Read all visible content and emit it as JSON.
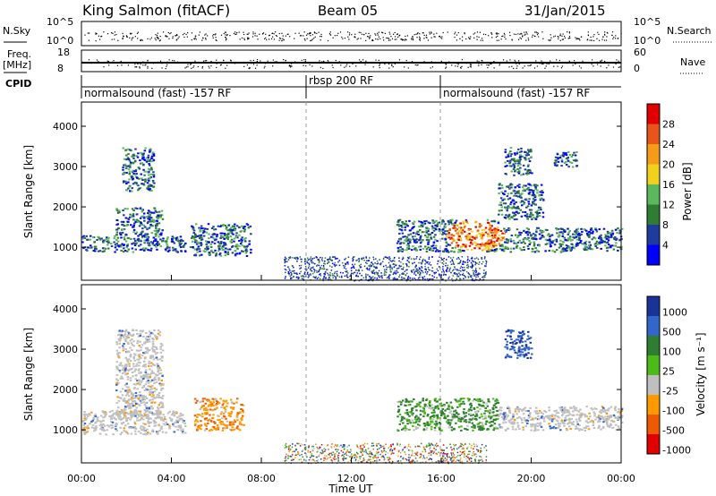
{
  "header": {
    "title": "King Salmon (fitACF)",
    "beam": "Beam 05",
    "date": "31/Jan/2015"
  },
  "aux_panels": {
    "nsky_label": "N.Sky",
    "nsky_ticks": [
      "10^5",
      "10^0"
    ],
    "nsearch_label": "N.Search",
    "nsearch_ticks": [
      "10^5",
      "10^0"
    ],
    "freq_label": "Freq.",
    "freq_unit": "[MHz]",
    "freq_ticks": [
      "18",
      "8"
    ],
    "nave_label": "Nave",
    "nave_ticks": [
      "60",
      "0"
    ],
    "cpid_label": "CPID",
    "cpid_segments": [
      {
        "label": "normalsound (fast) -157 RF",
        "start_h": 0,
        "end_h": 10
      },
      {
        "label": "rbsp 200 RF",
        "start_h": 10,
        "end_h": 16
      },
      {
        "label": "normalsound (fast) -157 RF",
        "start_h": 16,
        "end_h": 24
      }
    ]
  },
  "colors": {
    "power_scale": [
      "#0000ff",
      "#1e3ca0",
      "#2e7d32",
      "#5cb85c",
      "#f2d01e",
      "#f59b1a",
      "#e8551a",
      "#e00000"
    ],
    "velocity_scale": [
      "#e00000",
      "#ee5a00",
      "#ff9900",
      "#bfbfbf",
      "#4cbb17",
      "#2e7d32",
      "#3366cc",
      "#1a3399"
    ],
    "background": "#ffffff"
  },
  "chart_data": [
    {
      "type": "heatmap",
      "name": "power",
      "ylabel": "Slant Range [km]",
      "xlabel": "",
      "ylim": [
        180,
        4600
      ],
      "yticks": [
        "1000",
        "2000",
        "3000",
        "4000"
      ],
      "colorbar": {
        "label": "Power [dB]",
        "ticks": [
          "4",
          "8",
          "12",
          "16",
          "20",
          "24",
          "28"
        ],
        "range": [
          0,
          30
        ]
      },
      "bands": [
        {
          "t0": 0.0,
          "t1": 4.6,
          "r0": 900,
          "r1": 1300
        },
        {
          "t0": 1.5,
          "t1": 3.6,
          "r0": 1300,
          "r1": 2000
        },
        {
          "t0": 1.8,
          "t1": 3.2,
          "r0": 2400,
          "r1": 3500
        },
        {
          "t0": 4.8,
          "t1": 7.5,
          "r0": 800,
          "r1": 1600
        },
        {
          "t0": 14.0,
          "t1": 18.5,
          "r0": 900,
          "r1": 1700
        },
        {
          "t0": 18.0,
          "t1": 24.0,
          "r0": 900,
          "r1": 1500
        },
        {
          "t0": 18.5,
          "t1": 20.5,
          "r0": 1700,
          "r1": 2600
        },
        {
          "t0": 18.8,
          "t1": 20.0,
          "r0": 2800,
          "r1": 3500
        },
        {
          "t0": 21.0,
          "t1": 22.0,
          "r0": 3000,
          "r1": 3400
        }
      ],
      "peak": {
        "t": 17.5,
        "r": 1300,
        "value_db": 26
      }
    },
    {
      "type": "heatmap",
      "name": "velocity",
      "ylabel": "Slant Range [km]",
      "xlabel": "Time UT",
      "ylim": [
        180,
        4600
      ],
      "yticks": [
        "1000",
        "2000",
        "3000",
        "4000"
      ],
      "xticks": [
        "00:00",
        "04:00",
        "08:00",
        "12:00",
        "16:00",
        "20:00",
        "00:00"
      ],
      "xlim_hours": [
        0,
        24
      ],
      "colorbar": {
        "label": "Velocity [m s⁻¹]",
        "ticks": [
          "1000",
          "500",
          "100",
          "25",
          "-25",
          "-100",
          "-500",
          "-1000"
        ]
      },
      "bands": [
        {
          "t0": 0.0,
          "t1": 4.6,
          "r0": 900,
          "r1": 1500,
          "kind": "ground"
        },
        {
          "t0": 1.5,
          "t1": 3.6,
          "r0": 1300,
          "r1": 3500,
          "kind": "ground"
        },
        {
          "t0": 5.0,
          "t1": 7.2,
          "r0": 1000,
          "r1": 1800,
          "kind": "negative"
        },
        {
          "t0": 14.0,
          "t1": 18.5,
          "r0": 1000,
          "r1": 1800,
          "kind": "positive"
        },
        {
          "t0": 18.5,
          "t1": 24.0,
          "r0": 1000,
          "r1": 1600,
          "kind": "ground"
        },
        {
          "t0": 18.8,
          "t1": 20.0,
          "r0": 2800,
          "r1": 3500,
          "kind": "fast"
        }
      ]
    }
  ]
}
